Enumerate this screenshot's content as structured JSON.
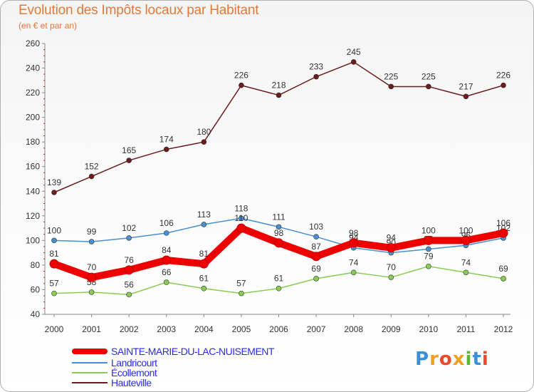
{
  "header": {
    "title": "Evolution des Impôts locaux par Habitant",
    "subtitle": "(en € et par an)"
  },
  "logo": {
    "text": "Proxiti",
    "letters": [
      {
        "ch": "P",
        "color": "#3a8fd8"
      },
      {
        "ch": "r",
        "color": "#f0a020"
      },
      {
        "ch": "o",
        "color": "#e84a2a"
      },
      {
        "ch": "x",
        "color": "#f0a020"
      },
      {
        "ch": "i",
        "color": "#5cb830"
      },
      {
        "ch": "t",
        "color": "#3a8fd8"
      },
      {
        "ch": "i",
        "color": "#e84a2a"
      }
    ]
  },
  "chart_data": {
    "type": "line",
    "title": "Evolution des Impôts locaux par Habitant",
    "subtitle": "(en € et par an)",
    "xlabel": "",
    "ylabel": "",
    "x": [
      "2000",
      "2001",
      "2002",
      "2003",
      "2004",
      "2005",
      "2006",
      "2007",
      "2008",
      "2009",
      "2010",
      "2011",
      "2012"
    ],
    "ylim": [
      40,
      260
    ],
    "yticks": [
      40,
      60,
      80,
      100,
      120,
      140,
      160,
      180,
      200,
      220,
      240,
      260
    ],
    "grid": false,
    "legend_position": "bottom-left",
    "series": [
      {
        "name": "Hauteville",
        "color": "#6b1c1c",
        "values": [
          139,
          152,
          165,
          174,
          180,
          226,
          218,
          233,
          245,
          225,
          225,
          217,
          226
        ],
        "labels": [
          "139",
          "152",
          "165",
          "174",
          "180",
          "226",
          "218",
          "233",
          "245",
          "225",
          "225",
          "217",
          "226"
        ]
      },
      {
        "name": "Landricourt",
        "color": "#4a90d0",
        "values": [
          100,
          99,
          102,
          106,
          113,
          118,
          111,
          103,
          94,
          90,
          93,
          96,
          102
        ],
        "labels": [
          "100",
          "99",
          "102",
          "106",
          "113",
          "118",
          "111",
          "103",
          "94",
          "90",
          "93",
          "96",
          "102"
        ]
      },
      {
        "name": "Écollemont",
        "color": "#88cc55",
        "values": [
          57,
          58,
          56,
          66,
          61,
          57,
          61,
          69,
          74,
          70,
          79,
          74,
          69
        ],
        "labels": [
          "57",
          "58",
          "56",
          "66",
          "61",
          "57",
          "61",
          "69",
          "74",
          "70",
          "79",
          "74",
          "69"
        ]
      },
      {
        "name": "SAINTE-MARIE-DU-LAC-NUISEMENT",
        "color": "#ee0000",
        "values": [
          81,
          70,
          76,
          84,
          81,
          110,
          98,
          87,
          98,
          94,
          100,
          100,
          106
        ],
        "labels": [
          "81",
          "70",
          "76",
          "84",
          "81",
          "110",
          "98",
          "87",
          "98",
          "94",
          "100",
          "100",
          "106"
        ]
      }
    ]
  },
  "legend": {
    "items": [
      {
        "label": "SAINTE-MARIE-DU-LAC-NUISEMENT",
        "color": "#ee0000"
      },
      {
        "label": "Landricourt",
        "color": "#4a90d0"
      },
      {
        "label": "Écollemont",
        "color": "#88cc55"
      },
      {
        "label": "Hauteville",
        "color": "#6b1c1c"
      }
    ]
  }
}
